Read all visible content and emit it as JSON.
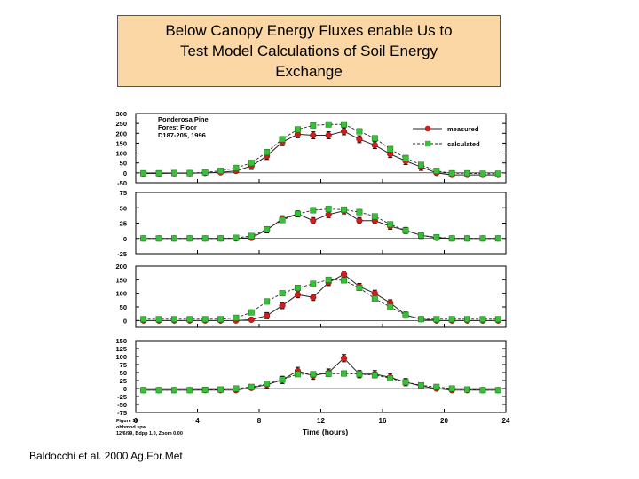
{
  "slide": {
    "title": "Below Canopy Energy Fluxes enable Us to\nTest Model Calculations of Soil Energy\nExchange",
    "citation": "Baldocchi et al. 2000 Ag.For.Met"
  },
  "figure_footer": [
    "Figure 16",
    "ohbmod.spw",
    "12/6/99, Bdpp 1.0, Zoom 0.00"
  ],
  "colors": {
    "measured": "#cc1f1f",
    "calculated": "#38c038",
    "title_bg": "#fbd7a6"
  },
  "chart_data": [
    {
      "type": "line",
      "annotation": [
        "Ponderosa Pine",
        "Forest Floor",
        "D187-205, 1996"
      ],
      "legend": [
        "measured",
        "calculated"
      ],
      "legend_position": "top-right",
      "ylabel": "",
      "ylim": [
        -50,
        300
      ],
      "yticks": [
        -50,
        0,
        50,
        100,
        150,
        200,
        250,
        300
      ],
      "x": [
        0,
        1,
        2,
        3,
        4,
        5,
        6,
        7,
        8,
        9,
        10,
        11,
        12,
        13,
        14,
        15,
        16,
        17,
        18,
        19,
        20,
        21,
        22,
        23
      ],
      "series": [
        {
          "name": "measured",
          "values": [
            -3,
            -3,
            -2,
            -2,
            0,
            3,
            10,
            35,
            85,
            155,
            195,
            190,
            190,
            210,
            170,
            140,
            95,
            60,
            30,
            0,
            -10,
            -10,
            -10,
            -10
          ]
        },
        {
          "name": "calculated",
          "values": [
            -2,
            -2,
            -1,
            -1,
            3,
            10,
            25,
            50,
            105,
            170,
            220,
            240,
            245,
            245,
            210,
            175,
            120,
            75,
            40,
            10,
            -2,
            -2,
            -4,
            -4
          ]
        }
      ]
    },
    {
      "type": "line",
      "ylabel": "",
      "ylim": [
        -25,
        75
      ],
      "yticks": [
        -25,
        0,
        25,
        50,
        75
      ],
      "x": [
        0,
        1,
        2,
        3,
        4,
        5,
        6,
        7,
        8,
        9,
        10,
        11,
        12,
        13,
        14,
        15,
        16,
        17,
        18,
        19,
        20,
        21,
        22,
        23
      ],
      "series": [
        {
          "name": "measured",
          "values": [
            0,
            0,
            0,
            0,
            0,
            0,
            0,
            1,
            14,
            32,
            40,
            29,
            39,
            45,
            29,
            29,
            20,
            13,
            5,
            1,
            0,
            0,
            0,
            0
          ]
        },
        {
          "name": "calculated",
          "values": [
            0,
            0,
            0,
            0,
            0,
            0,
            1,
            4,
            15,
            30,
            40,
            46,
            48,
            47,
            43,
            36,
            23,
            13,
            5,
            2,
            0,
            0,
            0,
            0
          ]
        }
      ]
    },
    {
      "type": "line",
      "ylabel": "",
      "ylim": [
        -25,
        200
      ],
      "yticks": [
        0,
        50,
        100,
        150,
        200
      ],
      "x": [
        0,
        1,
        2,
        3,
        4,
        5,
        6,
        7,
        8,
        9,
        10,
        11,
        12,
        13,
        14,
        15,
        16,
        17,
        18,
        19,
        20,
        21,
        22,
        23
      ],
      "series": [
        {
          "name": "measured",
          "values": [
            0,
            0,
            0,
            0,
            0,
            0,
            0,
            3,
            18,
            55,
            95,
            85,
            140,
            170,
            125,
            100,
            65,
            20,
            5,
            0,
            0,
            0,
            0,
            0
          ]
        },
        {
          "name": "calculated",
          "values": [
            5,
            5,
            5,
            5,
            5,
            5,
            10,
            30,
            70,
            100,
            120,
            135,
            150,
            148,
            120,
            80,
            50,
            20,
            5,
            5,
            5,
            5,
            5,
            5
          ]
        }
      ]
    },
    {
      "type": "line",
      "ylabel": "",
      "ylim": [
        -75,
        150
      ],
      "yticks": [
        -75,
        -50,
        -25,
        0,
        25,
        50,
        75,
        100,
        125,
        150
      ],
      "xlabel": "Time (hours)",
      "xticks": [
        0,
        4,
        8,
        12,
        16,
        20,
        24
      ],
      "xlim": [
        0,
        24
      ],
      "x": [
        0,
        1,
        2,
        3,
        4,
        5,
        6,
        7,
        8,
        9,
        10,
        11,
        12,
        13,
        14,
        15,
        16,
        17,
        18,
        19,
        20,
        21,
        22,
        23
      ],
      "series": [
        {
          "name": "measured",
          "values": [
            -5,
            -5,
            -5,
            -5,
            -5,
            -5,
            -5,
            2,
            12,
            27,
            55,
            40,
            50,
            95,
            45,
            45,
            35,
            20,
            8,
            0,
            -5,
            -5,
            -5,
            -5
          ]
        },
        {
          "name": "calculated",
          "values": [
            -5,
            -5,
            -5,
            -5,
            -4,
            -3,
            0,
            5,
            15,
            28,
            45,
            45,
            46,
            47,
            45,
            42,
            32,
            20,
            10,
            5,
            0,
            -3,
            -5,
            -5
          ]
        }
      ]
    }
  ]
}
